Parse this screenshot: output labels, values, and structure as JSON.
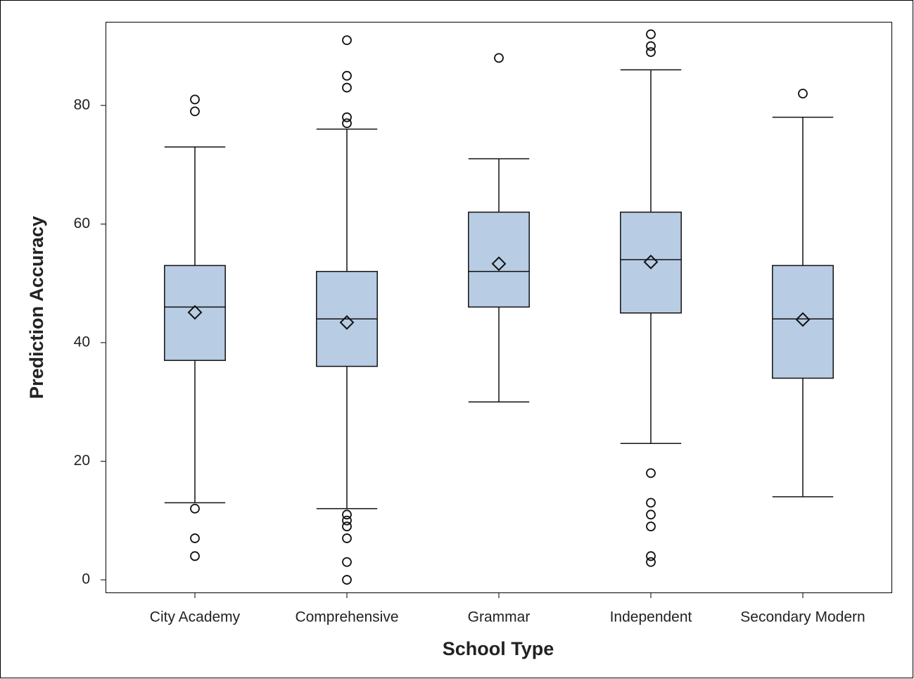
{
  "chart_data": {
    "type": "box",
    "x_label": "School Type",
    "y_label": "Prediction Accuracy",
    "categories": [
      "City Academy",
      "Comprehensive",
      "Grammar",
      "Independent",
      "Secondary Modern"
    ],
    "whisker_low": [
      13,
      12,
      30,
      23,
      14
    ],
    "q1": [
      37,
      36,
      46,
      45,
      34
    ],
    "median": [
      46,
      44,
      52,
      54,
      44
    ],
    "q3": [
      53,
      52,
      62,
      62,
      53
    ],
    "whisker_high": [
      73,
      76,
      71,
      86,
      78
    ],
    "mean": [
      45.1,
      43.4,
      53.3,
      53.6,
      43.9
    ],
    "outliers": [
      [
        81,
        79,
        12,
        7,
        4
      ],
      [
        91,
        85,
        83,
        78,
        77,
        11,
        10,
        9,
        7,
        3,
        0
      ],
      [
        88
      ],
      [
        92,
        90,
        89,
        18,
        13,
        11,
        9,
        4,
        3
      ],
      [
        82
      ]
    ],
    "color": "#b8cce4",
    "ylim": [
      -2.25,
      94.1
    ],
    "yticks": [
      0,
      20,
      40,
      60,
      80
    ]
  }
}
